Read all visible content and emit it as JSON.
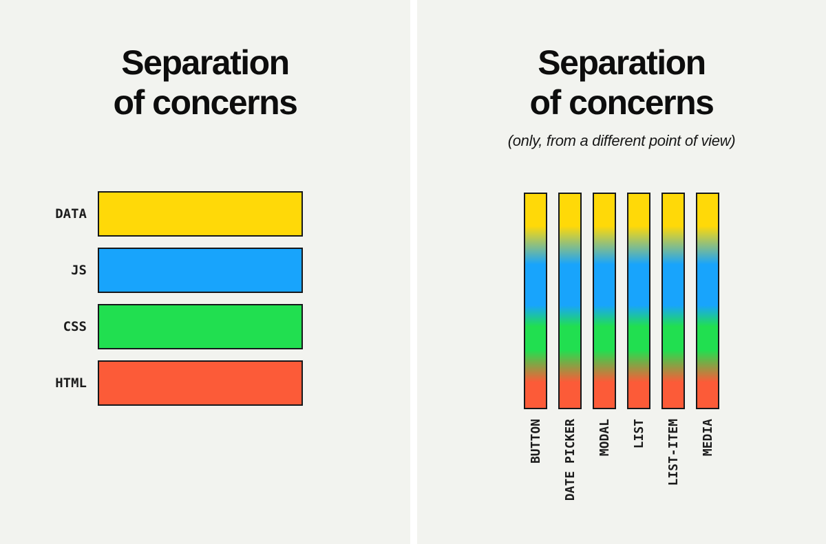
{
  "colors": {
    "background": "#f2f3ef",
    "divider": "#ffffff",
    "bar_border": "#15171a",
    "text": "#0d0d0d",
    "data_yellow": "#ffd908",
    "js_blue": "#18a4fc",
    "css_green": "#21df50",
    "html_red": "#fc5b38"
  },
  "left_panel": {
    "title_line1": "Separation",
    "title_line2": "of concerns",
    "chart": {
      "type": "bar",
      "orientation": "horizontal",
      "layers": [
        {
          "label": "DATA",
          "color": "#ffd908"
        },
        {
          "label": "JS",
          "color": "#18a4fc"
        },
        {
          "label": "CSS",
          "color": "#21df50"
        },
        {
          "label": "HTML",
          "color": "#fc5b38"
        }
      ]
    }
  },
  "right_panel": {
    "title_line1": "Separation",
    "title_line2": "of concerns",
    "subtitle": "(only, from a different point of view)",
    "chart": {
      "type": "bar",
      "orientation": "vertical",
      "components": [
        "BUTTON",
        "DATE PICKER",
        "MODAL",
        "LIST",
        "LIST-ITEM",
        "MEDIA"
      ],
      "gradient_stops": [
        {
          "color": "#ffd908",
          "from": 0,
          "to": 15
        },
        {
          "color": "#18a4fc",
          "from": 33,
          "to": 52
        },
        {
          "color": "#21df50",
          "from": 62,
          "to": 73
        },
        {
          "color": "#fc5b38",
          "from": 88,
          "to": 100
        }
      ]
    }
  }
}
